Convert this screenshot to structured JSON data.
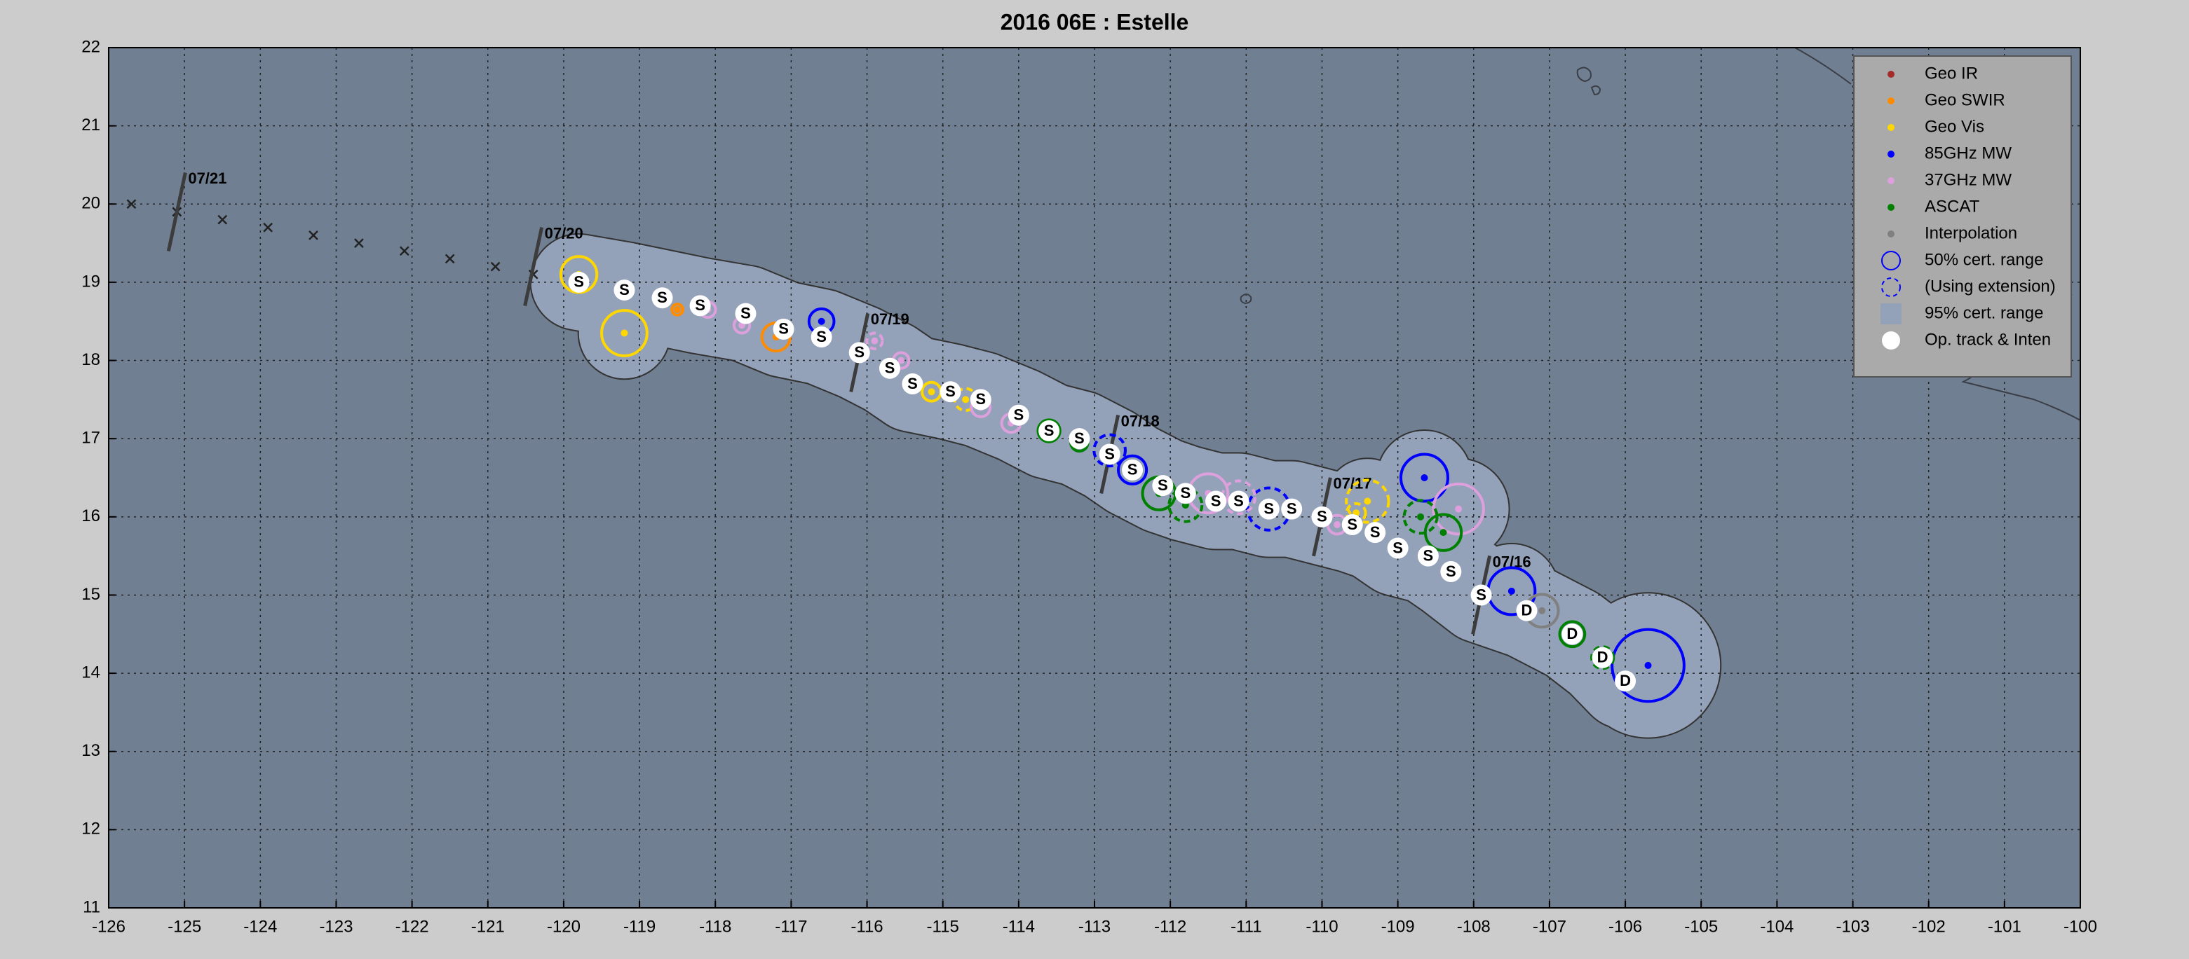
{
  "chart_data": {
    "type": "track",
    "title": "2016  06E :  Estelle",
    "xlim": [
      -126,
      -100
    ],
    "ylim": [
      11,
      22
    ],
    "xticks": [
      -126,
      -125,
      -124,
      -123,
      -122,
      -121,
      -120,
      -119,
      -118,
      -117,
      -116,
      -115,
      -114,
      -113,
      -112,
      -111,
      -110,
      -109,
      -108,
      -107,
      -106,
      -105,
      -104,
      -103,
      -102,
      -101,
      -100
    ],
    "yticks": [
      11,
      12,
      13,
      14,
      15,
      16,
      17,
      18,
      19,
      20,
      21,
      22
    ],
    "grid": true,
    "legend": "upper right",
    "track": {
      "name": "Op. track & Inten",
      "color": "#ffffff",
      "x": [
        -106.0,
        -106.3,
        -106.7,
        -107.3,
        -107.9,
        -108.3,
        -108.6,
        -109.0,
        -109.3,
        -109.6,
        -110.0,
        -110.4,
        -110.7,
        -111.1,
        -111.4,
        -111.8,
        -112.1,
        -112.5,
        -112.8,
        -113.2,
        -113.6,
        -114.0,
        -114.5,
        -114.9,
        -115.4,
        -115.7,
        -116.1,
        -116.6,
        -117.1,
        -117.6,
        -118.2,
        -118.7,
        -119.2,
        -119.8
      ],
      "y": [
        13.9,
        14.2,
        14.5,
        14.8,
        15.0,
        15.3,
        15.5,
        15.6,
        15.8,
        15.9,
        16.0,
        16.1,
        16.1,
        16.2,
        16.2,
        16.3,
        16.4,
        16.6,
        16.8,
        17.0,
        17.1,
        17.3,
        17.5,
        17.6,
        17.7,
        17.9,
        18.1,
        18.3,
        18.4,
        18.6,
        18.7,
        18.8,
        18.9,
        19.0
      ],
      "labels": [
        "D",
        "D",
        "D",
        "D",
        "S",
        "S",
        "S",
        "S",
        "S",
        "S",
        "S",
        "S",
        "S",
        "S",
        "S",
        "S",
        "S",
        "S",
        "S",
        "S",
        "S",
        "S",
        "S",
        "S",
        "S",
        "S",
        "S",
        "S",
        "S",
        "S",
        "S",
        "S",
        "S",
        "S"
      ]
    },
    "extratropical": {
      "x": [
        -125.7,
        -125.1,
        -124.5,
        -123.9,
        -123.3,
        -122.7,
        -122.1,
        -121.5,
        -120.9,
        -120.4
      ],
      "y": [
        20.0,
        19.9,
        19.8,
        19.7,
        19.6,
        19.5,
        19.4,
        19.3,
        19.2,
        19.1
      ]
    },
    "dates": [
      {
        "label": "07/21",
        "x": -125.1,
        "y": 19.9
      },
      {
        "label": "07/20",
        "x": -120.4,
        "y": 19.2
      },
      {
        "label": "07/19",
        "x": -116.1,
        "y": 18.1
      },
      {
        "label": "07/18",
        "x": -112.8,
        "y": 16.8
      },
      {
        "label": "07/17",
        "x": -110.0,
        "y": 16.0
      },
      {
        "label": "07/16",
        "x": -107.9,
        "y": 15.0
      }
    ],
    "series": [
      {
        "name": "Geo IR",
        "color": "#a52a2a",
        "x": [],
        "y": [],
        "r": [],
        "dashed": []
      },
      {
        "name": "Geo SWIR",
        "color": "#ff8c00",
        "x": [
          -117.2,
          -118.5
        ],
        "y": [
          18.3,
          18.65
        ],
        "r": [
          0.18,
          0.07
        ],
        "dashed": [
          false,
          false
        ]
      },
      {
        "name": "Geo Vis",
        "color": "#ffd700",
        "x": [
          -109.4,
          -109.55,
          -119.8,
          -119.2,
          -115.15,
          -114.7
        ],
        "y": [
          16.2,
          16.05,
          19.1,
          18.35,
          17.6,
          17.5
        ],
        "r": [
          0.27,
          0.12,
          0.23,
          0.29,
          0.12,
          0.14
        ],
        "dashed": [
          true,
          true,
          false,
          false,
          false,
          true
        ]
      },
      {
        "name": "85GHz MW",
        "color": "#0000ff",
        "x": [
          -105.7,
          -107.5,
          -108.65,
          -110.7,
          -112.5,
          -112.8,
          -116.6
        ],
        "y": [
          14.1,
          15.05,
          16.5,
          16.1,
          16.6,
          16.85,
          18.5
        ],
        "r": [
          0.46,
          0.3,
          0.3,
          0.27,
          0.18,
          0.2,
          0.16
        ],
        "dashed": [
          false,
          false,
          false,
          true,
          false,
          true,
          false
        ]
      },
      {
        "name": "37GHz MW",
        "color": "#dda0dd",
        "x": [
          -108.2,
          -111.5,
          -111.1,
          -109.8,
          -114.1,
          -114.5,
          -115.55,
          -115.9,
          -117.65,
          -118.1
        ],
        "y": [
          16.1,
          16.3,
          16.25,
          15.9,
          17.2,
          17.4,
          18.0,
          18.25,
          18.45,
          18.65
        ],
        "r": [
          0.32,
          0.25,
          0.21,
          0.12,
          0.12,
          0.12,
          0.1,
          0.1,
          0.1,
          0.1
        ],
        "dashed": [
          false,
          false,
          true,
          false,
          false,
          false,
          false,
          true,
          false,
          false
        ]
      },
      {
        "name": "ASCAT",
        "color": "#008000",
        "x": [
          -106.7,
          -106.3,
          -108.4,
          -108.7,
          -112.15,
          -111.8,
          -113.6,
          -113.2
        ],
        "y": [
          14.5,
          14.2,
          15.8,
          16.0,
          16.3,
          16.15,
          17.1,
          16.95
        ],
        "r": [
          0.16,
          0.14,
          0.23,
          0.21,
          0.21,
          0.21,
          0.14,
          0.11
        ],
        "dashed": [
          false,
          true,
          false,
          true,
          false,
          true,
          false,
          false
        ]
      },
      {
        "name": "Interpolation",
        "color": "#808080",
        "x": [
          -107.1
        ],
        "y": [
          14.8
        ],
        "r": [
          0.21
        ],
        "dashed": [
          false
        ]
      }
    ],
    "cert_legend": [
      {
        "name": "50% cert. range",
        "style": "solid",
        "color": "#0000ff"
      },
      {
        "name": "(Using extension)",
        "style": "dashed",
        "color": "#0000ff"
      }
    ],
    "envelope": {
      "name": "95% cert. range",
      "color": "#94a2b9"
    }
  }
}
